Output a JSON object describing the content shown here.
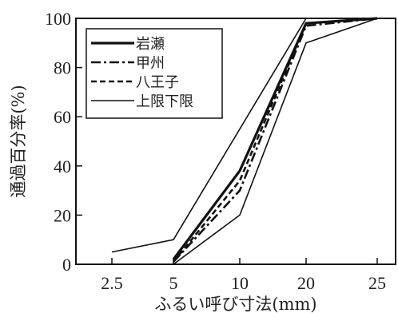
{
  "chart_data": {
    "type": "line",
    "title": "",
    "xlabel": "ふるい呼び寸法(mm)",
    "ylabel": "通過百分率(%)",
    "x_tick_labels": [
      "2.5",
      "5",
      "10",
      "20",
      "25"
    ],
    "y_tick_labels": [
      "0",
      "20",
      "40",
      "60",
      "80",
      "100"
    ],
    "ylim": [
      0,
      100
    ],
    "legend_position": "top-left",
    "grid": false,
    "series": [
      {
        "name": "岩瀬",
        "style": "solid-bold",
        "color": "#111111",
        "x": [
          "5",
          "10",
          "20",
          "25"
        ],
        "values": [
          2,
          38,
          98,
          100
        ]
      },
      {
        "name": "甲州",
        "style": "dash-dot",
        "color": "#111111",
        "x": [
          "5",
          "10",
          "20",
          "25"
        ],
        "values": [
          1,
          30,
          97,
          100
        ]
      },
      {
        "name": "八王子",
        "style": "dashed",
        "color": "#111111",
        "x": [
          "5",
          "10",
          "20",
          "25"
        ],
        "values": [
          1,
          34,
          98,
          100
        ]
      },
      {
        "name": "上限下限",
        "style": "solid-thin",
        "color": "#111111",
        "x": [
          "2.5",
          "5",
          "10",
          "20",
          "25"
        ],
        "values": [
          5,
          10,
          55,
          100,
          100
        ],
        "values_lower": [
          0,
          0,
          20,
          90,
          100
        ]
      }
    ]
  }
}
